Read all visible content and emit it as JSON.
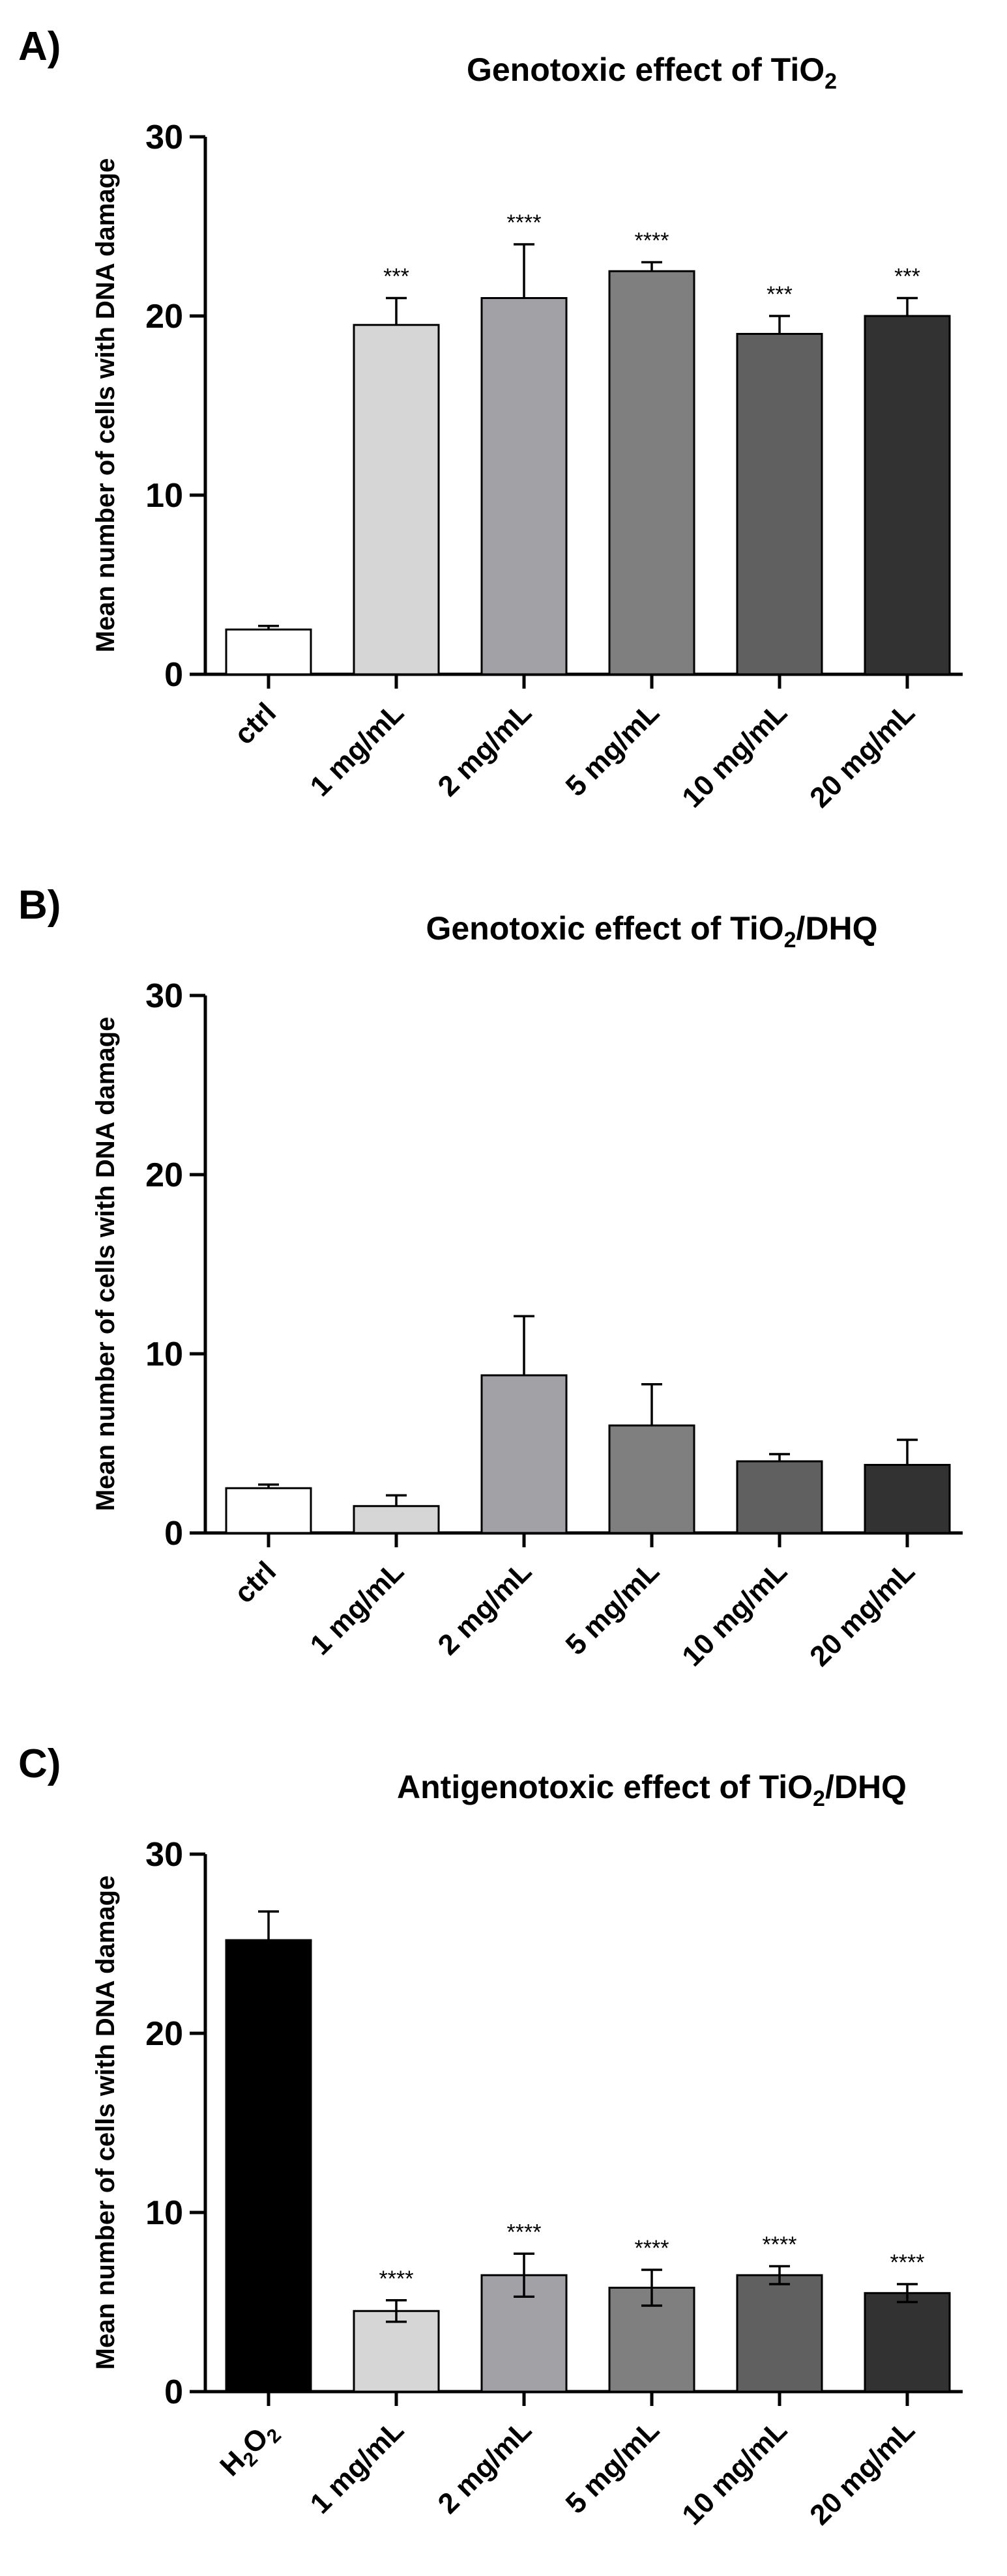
{
  "chart_data": [
    {
      "panel_label": "A)",
      "type": "bar",
      "title": "Genotoxic effect of TiO",
      "title_subscript": "2",
      "title_suffix": "",
      "ylabel": "Mean number of cells with DNA damage",
      "ylim": [
        0,
        30
      ],
      "yticks": [
        "0",
        "10",
        "20",
        "30"
      ],
      "categories": [
        "ctrl",
        "1 mg/mL",
        "2 mg/mL",
        "5 mg/mL",
        "10 mg/mL",
        "20 mg/mL"
      ],
      "values": [
        2.5,
        19.5,
        21,
        22.5,
        19,
        20
      ],
      "errors": [
        0.2,
        1.5,
        3,
        0.5,
        1,
        1
      ],
      "significance": [
        "",
        "***",
        "****",
        "****",
        "***",
        "***"
      ],
      "colors": [
        "#ffffff",
        "#d6d6d6",
        "#a2a2a6",
        "#7f7f7f",
        "#606060",
        "#323232"
      ]
    },
    {
      "panel_label": "B)",
      "type": "bar",
      "title": "Genotoxic effect of TiO",
      "title_subscript": "2",
      "title_suffix": "/DHQ",
      "ylabel": "Mean number of cells with DNA damage",
      "ylim": [
        0,
        30
      ],
      "yticks": [
        "0",
        "10",
        "20",
        "30"
      ],
      "categories": [
        "ctrl",
        "1 mg/mL",
        "2 mg/mL",
        "5 mg/mL",
        "10 mg/mL",
        "20 mg/mL"
      ],
      "values": [
        2.5,
        1.5,
        8.8,
        6,
        4,
        3.8
      ],
      "errors": [
        0.2,
        0.6,
        3.3,
        2.3,
        0.4,
        1.4
      ],
      "significance": [
        "",
        "",
        "",
        "",
        "",
        ""
      ],
      "colors": [
        "#ffffff",
        "#d6d6d6",
        "#a2a2a6",
        "#7f7f7f",
        "#606060",
        "#323232"
      ]
    },
    {
      "panel_label": "C)",
      "type": "bar",
      "title": "Antigenotoxic effect of TiO",
      "title_subscript": "2",
      "title_suffix": "/DHQ",
      "ylabel": "Mean number of cells with DNA damage",
      "ylim": [
        0,
        30
      ],
      "yticks": [
        "0",
        "10",
        "20",
        "30"
      ],
      "categories": [
        "H2O2",
        "1 mg/mL",
        "2 mg/mL",
        "5 mg/mL",
        "10 mg/mL",
        "20 mg/mL"
      ],
      "values": [
        25.2,
        4.5,
        6.5,
        5.8,
        6.5,
        5.5
      ],
      "errors": [
        1.6,
        0.6,
        1.2,
        1.0,
        0.5,
        0.5
      ],
      "significance": [
        "",
        "****",
        "****",
        "****",
        "****",
        "****"
      ],
      "colors": [
        "#000000",
        "#d6d6d6",
        "#a2a2a6",
        "#7f7f7f",
        "#606060",
        "#323232"
      ]
    }
  ]
}
